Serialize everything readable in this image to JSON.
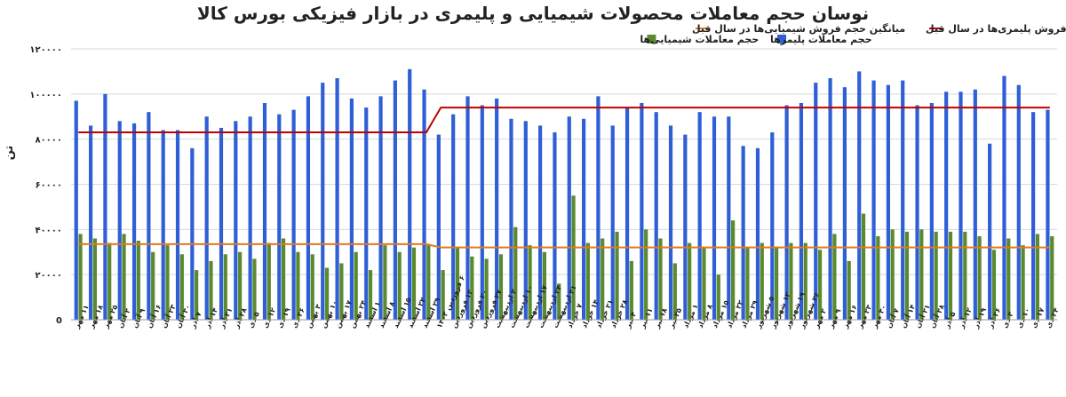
{
  "chart_data": {
    "type": "bar",
    "title": "نوسان حجم معاملات محصولات شیمیایی و پلیمری در بازار فیزیکی بورس کالا",
    "ylabel": "تن",
    "ylim": [
      0,
      120000
    ],
    "yticks": [
      0,
      20000,
      40000,
      60000,
      80000,
      100000,
      120000
    ],
    "ytick_labels": [
      "0",
      "۲۰۰۰۰",
      "۴۰۰۰۰",
      "۶۰۰۰۰",
      "۸۰۰۰۰",
      "۱۰۰۰۰۰",
      "۱۲۰۰۰۰"
    ],
    "grid": true,
    "legend_position": "top",
    "legend": [
      {
        "label": "حجم معاملات پلیمرها",
        "kind": "bar",
        "color": "#2f5fd6"
      },
      {
        "label": "حجم معاملات شیمیایی‌ها",
        "kind": "bar",
        "color": "#5b8a2e"
      },
      {
        "label": "میانگین حجم فروش پلیمری‌ها در سال قبل",
        "kind": "line",
        "color": "#c00000"
      },
      {
        "label": "میانگین حجم فروش شیمیایی‌ها در سال قبل",
        "kind": "line",
        "color": "#e07a1f"
      }
    ],
    "categories": [
      "۱۱ مهر",
      "۱۸ مهر",
      "۲۵ مهر",
      "۲ آبان",
      "۹ آبان",
      "۱۶ آبان",
      "۲۳ آبان",
      "۳۰ آبان",
      "۷ آذر",
      "۱۴ آذر",
      "۲۱ آذر",
      "۲۸ آذر",
      "۵ دی",
      "۱۲ دی",
      "۱۹ دی",
      "۲۶ دی",
      "۳ بهمن",
      "۱۰ بهمن",
      "۱۷ بهمن",
      "۲۴ بهمن",
      "۱ اسفند",
      "۸ اسفند",
      "۱۵ اسفند",
      "۲۲ اسفند",
      "۲۹ اسفند",
      "۶ فروردین ۱۴۰۳",
      "۱۳ فروردین",
      "۲۰ فروردین",
      "۲۷ فروردین",
      "۳ اردیبهشت",
      "۱۰ اردیبهشت",
      "۱۷ اردیبهشت",
      "۲۴ اردیبهشت",
      "۳۱ اردیبهشت",
      "۷ خرداد",
      "۱۴ خرداد",
      "۲۱ خرداد",
      "۲۸ خرداد",
      "۴ تیر",
      "۱۱ تیر",
      "۱۸ تیر",
      "۲۵ تیر",
      "۱ مرداد",
      "۸ مرداد",
      "۱۵ مرداد",
      "۲۲ مرداد",
      "۲۹ مرداد",
      "۵ شهریور",
      "۱۲ شهریور",
      "۱۹ شهریور",
      "۲۶ شهریور",
      "۲ مهر",
      "۹ مهر",
      "۱۶ مهر",
      "۲۳ مهر",
      "۳۰ مهر",
      "۷ آبان",
      "۱۴ آبان",
      "۲۱ آبان",
      "۲۸ آبان",
      "۵ آذر",
      "۱۲ آذر",
      "۱۹ آذر",
      "۲۶ آذر",
      "۳ دی",
      "۱۰ دی",
      "۱۷ دی",
      "۲۴ دی"
    ],
    "series": [
      {
        "name": "حجم معاملات پلیمرها",
        "color": "#2f5fd6",
        "values": [
          97000,
          86000,
          100000,
          88000,
          87000,
          92000,
          84000,
          84000,
          76000,
          90000,
          85000,
          88000,
          90000,
          96000,
          91000,
          93000,
          99000,
          105000,
          107000,
          98000,
          94000,
          99000,
          106000,
          111000,
          102000,
          82000,
          91000,
          99000,
          95000,
          98000,
          89000,
          88000,
          86000,
          83000,
          90000,
          89000,
          99000,
          86000,
          94000,
          96000,
          92000,
          86000,
          82000,
          92000,
          90000,
          90000,
          77000,
          76000,
          83000,
          95000,
          96000,
          105000,
          107000,
          103000,
          110000,
          106000,
          104000,
          106000,
          95000,
          96000,
          101000,
          101000,
          102000,
          78000,
          108000,
          104000,
          92000,
          93000
        ]
      },
      {
        "name": "حجم معاملات شیمیایی‌ها",
        "color": "#5b8a2e",
        "values": [
          38000,
          36000,
          34000,
          38000,
          35000,
          30000,
          33000,
          29000,
          22000,
          26000,
          29000,
          30000,
          27000,
          34000,
          36000,
          30000,
          29000,
          23000,
          25000,
          30000,
          22000,
          33000,
          30000,
          32000,
          33000,
          22000,
          32000,
          28000,
          27000,
          29000,
          41000,
          33000,
          30000,
          16000,
          55000,
          34000,
          36000,
          39000,
          26000,
          40000,
          36000,
          25000,
          34000,
          32000,
          20000,
          44000,
          32000,
          34000,
          32000,
          34000,
          34000,
          31000,
          38000,
          26000,
          47000,
          37000,
          40000,
          39000,
          40000,
          39000,
          39000,
          39000,
          37000,
          31000,
          36000,
          33000,
          38000,
          37000
        ]
      },
      {
        "name": "میانگین حجم فروش پلیمری‌ها در سال قبل",
        "color": "#c00000",
        "values": [
          83000,
          83000,
          83000,
          83000,
          83000,
          83000,
          83000,
          83000,
          83000,
          83000,
          83000,
          83000,
          83000,
          83000,
          83000,
          83000,
          83000,
          83000,
          83000,
          83000,
          83000,
          83000,
          83000,
          83000,
          83000,
          94000,
          94000,
          94000,
          94000,
          94000,
          94000,
          94000,
          94000,
          94000,
          94000,
          94000,
          94000,
          94000,
          94000,
          94000,
          94000,
          94000,
          94000,
          94000,
          94000,
          94000,
          94000,
          94000,
          94000,
          94000,
          94000,
          94000,
          94000,
          94000,
          94000,
          94000,
          94000,
          94000,
          94000,
          94000,
          94000,
          94000,
          94000,
          94000,
          94000,
          94000,
          94000,
          94000
        ]
      },
      {
        "name": "میانگین حجم فروش شیمیایی‌ها در سال قبل",
        "color": "#e07a1f",
        "values": [
          33500,
          33500,
          33500,
          33500,
          33500,
          33500,
          33500,
          33500,
          33500,
          33500,
          33500,
          33500,
          33500,
          33500,
          33500,
          33500,
          33500,
          33500,
          33500,
          33500,
          33500,
          33500,
          33500,
          33500,
          33500,
          32000,
          32000,
          32000,
          32000,
          32000,
          32000,
          32000,
          32000,
          32000,
          32000,
          32000,
          32000,
          32000,
          32000,
          32000,
          32000,
          32000,
          32000,
          32000,
          32000,
          32000,
          32000,
          32000,
          32000,
          32000,
          32000,
          32000,
          32000,
          32000,
          32000,
          32000,
          32000,
          32000,
          32000,
          32000,
          32000,
          32000,
          32000,
          32000,
          32000,
          32000,
          32000,
          32000
        ]
      }
    ]
  }
}
